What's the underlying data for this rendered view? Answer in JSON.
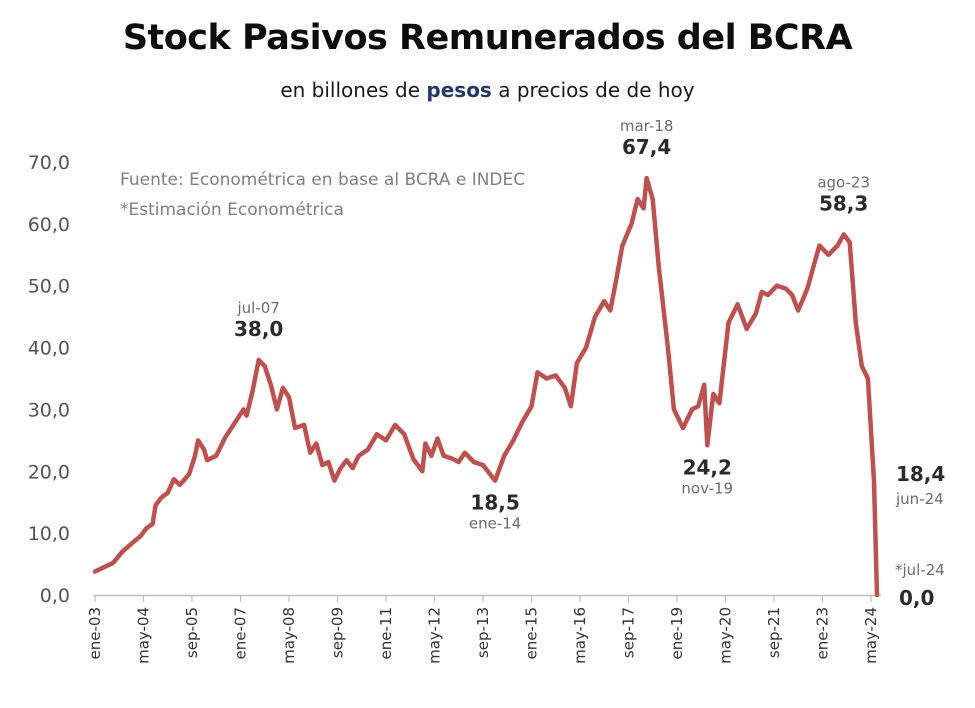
{
  "header": {
    "title": "Stock Pasivos Remunerados del BCRA",
    "subtitle_pre": "en billones de ",
    "subtitle_highlight": "pesos",
    "subtitle_post": " a precios de de hoy"
  },
  "notes": {
    "source": "Fuente: Econométrica en base al BCRA e INDEC",
    "estimate": "*Estimación Econométrica"
  },
  "colors": {
    "line": "#c0504d",
    "axis": "#bfbfbf",
    "highlight": "#1f3a6b"
  },
  "chart_data": {
    "type": "line",
    "title": "Stock Pasivos Remunerados del BCRA",
    "subtitle": "en billones de pesos a precios de de hoy",
    "ylim": [
      0,
      70
    ],
    "y_ticks": [
      "0,0",
      "10,0",
      "20,0",
      "30,0",
      "40,0",
      "50,0",
      "60,0",
      "70,0"
    ],
    "x_ticks": [
      "ene-03",
      "may-04",
      "sep-05",
      "ene-07",
      "may-08",
      "sep-09",
      "ene-11",
      "may-12",
      "sep-13",
      "ene-15",
      "may-16",
      "sep-17",
      "ene-19",
      "may-20",
      "sep-21",
      "ene-23",
      "may-24"
    ],
    "grid": false,
    "series": [
      {
        "points": [
          [
            "2003-01",
            3.8
          ],
          [
            "2003-04",
            4.5
          ],
          [
            "2003-07",
            5.2
          ],
          [
            "2003-10",
            7.0
          ],
          [
            "2004-01",
            8.3
          ],
          [
            "2004-04",
            9.5
          ],
          [
            "2004-06",
            10.8
          ],
          [
            "2004-08",
            11.5
          ],
          [
            "2004-09",
            14.5
          ],
          [
            "2004-11",
            15.8
          ],
          [
            "2005-01",
            16.5
          ],
          [
            "2005-03",
            18.7
          ],
          [
            "2005-05",
            17.8
          ],
          [
            "2005-08",
            19.5
          ],
          [
            "2005-10",
            22.5
          ],
          [
            "2005-11",
            25.0
          ],
          [
            "2006-01",
            23.5
          ],
          [
            "2006-02",
            21.8
          ],
          [
            "2006-05",
            22.5
          ],
          [
            "2006-08",
            25.5
          ],
          [
            "2006-10",
            27.0
          ],
          [
            "2006-12",
            28.5
          ],
          [
            "2007-02",
            30.0
          ],
          [
            "2007-03",
            29.0
          ],
          [
            "2007-05",
            33.0
          ],
          [
            "2007-07",
            38.0
          ],
          [
            "2007-09",
            37.0
          ],
          [
            "2007-11",
            34.0
          ],
          [
            "2008-01",
            30.0
          ],
          [
            "2008-03",
            33.5
          ],
          [
            "2008-05",
            32.0
          ],
          [
            "2008-07",
            27.0
          ],
          [
            "2008-10",
            27.5
          ],
          [
            "2008-12",
            23.0
          ],
          [
            "2009-02",
            24.5
          ],
          [
            "2009-04",
            21.0
          ],
          [
            "2009-06",
            21.5
          ],
          [
            "2009-08",
            18.5
          ],
          [
            "2009-10",
            20.5
          ],
          [
            "2009-12",
            21.8
          ],
          [
            "2010-02",
            20.5
          ],
          [
            "2010-04",
            22.5
          ],
          [
            "2010-07",
            23.5
          ],
          [
            "2010-10",
            26.0
          ],
          [
            "2011-01",
            25.0
          ],
          [
            "2011-04",
            27.5
          ],
          [
            "2011-07",
            26.0
          ],
          [
            "2011-10",
            22.0
          ],
          [
            "2012-01",
            20.0
          ],
          [
            "2012-02",
            24.5
          ],
          [
            "2012-04",
            22.5
          ],
          [
            "2012-06",
            25.3
          ],
          [
            "2012-08",
            22.5
          ],
          [
            "2012-11",
            22.0
          ],
          [
            "2013-01",
            21.5
          ],
          [
            "2013-03",
            23.0
          ],
          [
            "2013-06",
            21.5
          ],
          [
            "2013-09",
            21.0
          ],
          [
            "2014-01",
            18.5
          ],
          [
            "2014-04",
            22.5
          ],
          [
            "2014-07",
            25.0
          ],
          [
            "2014-10",
            28.0
          ],
          [
            "2015-01",
            30.5
          ],
          [
            "2015-03",
            36.0
          ],
          [
            "2015-06",
            35.0
          ],
          [
            "2015-09",
            35.5
          ],
          [
            "2015-12",
            33.5
          ],
          [
            "2016-02",
            30.5
          ],
          [
            "2016-04",
            37.5
          ],
          [
            "2016-07",
            40.0
          ],
          [
            "2016-10",
            45.0
          ],
          [
            "2017-01",
            47.5
          ],
          [
            "2017-03",
            46.0
          ],
          [
            "2017-05",
            51.0
          ],
          [
            "2017-07",
            56.5
          ],
          [
            "2017-10",
            60.0
          ],
          [
            "2017-12",
            64.0
          ],
          [
            "2018-02",
            62.5
          ],
          [
            "2018-03",
            67.4
          ],
          [
            "2018-05",
            64.0
          ],
          [
            "2018-07",
            53.0
          ],
          [
            "2018-10",
            40.0
          ],
          [
            "2018-12",
            30.0
          ],
          [
            "2019-03",
            27.0
          ],
          [
            "2019-06",
            30.0
          ],
          [
            "2019-08",
            30.5
          ],
          [
            "2019-10",
            34.0
          ],
          [
            "2019-11",
            24.2
          ],
          [
            "2020-01",
            32.5
          ],
          [
            "2020-03",
            31.0
          ],
          [
            "2020-06",
            44.0
          ],
          [
            "2020-09",
            47.0
          ],
          [
            "2020-12",
            43.0
          ],
          [
            "2021-03",
            45.5
          ],
          [
            "2021-05",
            49.0
          ],
          [
            "2021-07",
            48.5
          ],
          [
            "2021-10",
            50.0
          ],
          [
            "2022-01",
            49.5
          ],
          [
            "2022-03",
            48.5
          ],
          [
            "2022-05",
            46.0
          ],
          [
            "2022-08",
            49.5
          ],
          [
            "2022-10",
            53.0
          ],
          [
            "2022-12",
            56.5
          ],
          [
            "2023-03",
            55.0
          ],
          [
            "2023-06",
            56.5
          ],
          [
            "2023-08",
            58.3
          ],
          [
            "2023-10",
            57.0
          ],
          [
            "2023-12",
            44.0
          ],
          [
            "2024-02",
            37.0
          ],
          [
            "2024-04",
            35.0
          ],
          [
            "2024-06",
            18.4
          ],
          [
            "2024-07",
            0.0
          ]
        ]
      }
    ],
    "annotations": [
      {
        "date_label": "jul-07",
        "value_label": "38,0",
        "x": "2007-07",
        "y": 38.0,
        "position": "above"
      },
      {
        "date_label": "ene-14",
        "value_label": "18,5",
        "x": "2014-01",
        "y": 18.5,
        "position": "below"
      },
      {
        "date_label": "mar-18",
        "value_label": "67,4",
        "x": "2018-03",
        "y": 67.4,
        "position": "above"
      },
      {
        "date_label": "nov-19",
        "value_label": "24,2",
        "x": "2019-11",
        "y": 24.2,
        "position": "below"
      },
      {
        "date_label": "ago-23",
        "value_label": "58,3",
        "x": "2023-08",
        "y": 58.3,
        "position": "above"
      },
      {
        "date_label": "jun-24",
        "value_label": "18,4",
        "x": "2024-06",
        "y": 18.4,
        "position": "right"
      },
      {
        "date_label": "*jul-24",
        "value_label": "0,0",
        "x": "2024-07",
        "y": 0.0,
        "position": "right"
      }
    ]
  }
}
